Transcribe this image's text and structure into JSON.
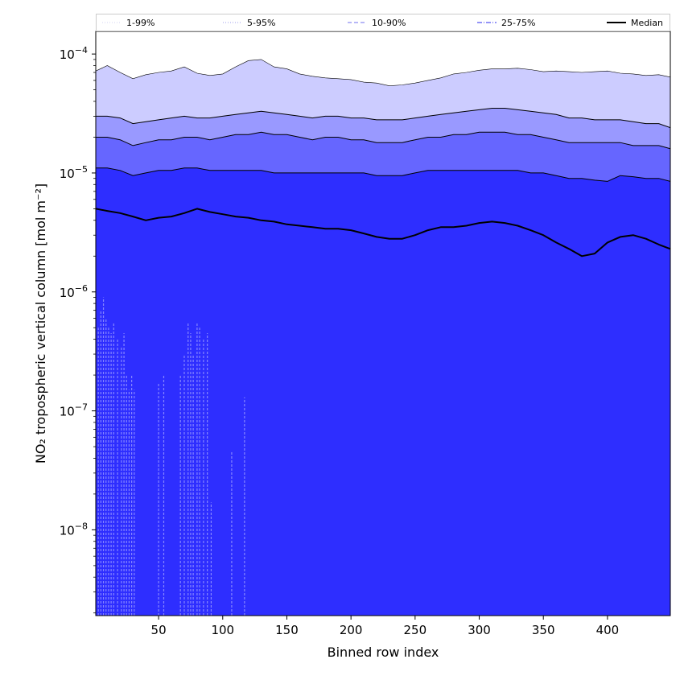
{
  "chart_data": {
    "type": "area",
    "xlabel": "Binned row index",
    "ylabel": "NO₂ tropospheric vertical column [mol m⁻²]",
    "xlim": [
      1,
      449
    ],
    "ylim": [
      1.9e-09,
      0.000155
    ],
    "yscale": "log",
    "xticks": [
      50,
      100,
      150,
      200,
      250,
      300,
      350,
      400
    ],
    "yticks": [
      {
        "value": 1e-08,
        "label": "10",
        "exp": "−8"
      },
      {
        "value": 1e-07,
        "label": "10",
        "exp": "−7"
      },
      {
        "value": 1e-06,
        "label": "10",
        "exp": "−6"
      },
      {
        "value": 1e-05,
        "label": "10",
        "exp": "−5"
      },
      {
        "value": 0.0001,
        "label": "10",
        "exp": "−4"
      }
    ],
    "legend_position": "top, above plot (5 columns)",
    "legend": [
      {
        "name": "1-99%",
        "style": "dotted",
        "color": "#dcdcf5"
      },
      {
        "name": "5-95%",
        "style": "dotted",
        "color": "#b0b0f0"
      },
      {
        "name": "10-90%",
        "style": "dashed",
        "color": "#8c8cf2"
      },
      {
        "name": "25-75%",
        "style": "dashdot",
        "color": "#5555f2"
      },
      {
        "name": "Median",
        "style": "solid",
        "color": "#000000"
      }
    ],
    "x": [
      1,
      10,
      20,
      30,
      40,
      50,
      60,
      70,
      80,
      90,
      100,
      110,
      120,
      130,
      140,
      150,
      160,
      170,
      180,
      190,
      200,
      210,
      220,
      230,
      240,
      250,
      260,
      270,
      280,
      290,
      300,
      310,
      320,
      330,
      340,
      350,
      360,
      370,
      380,
      390,
      400,
      410,
      420,
      430,
      440,
      449
    ],
    "series": [
      {
        "name": "1-99%",
        "band_color": "#ccccff",
        "upper": [
          7.2e-05,
          8e-05,
          7e-05,
          6.2e-05,
          6.7e-05,
          7e-05,
          7.2e-05,
          7.8e-05,
          6.9e-05,
          6.6e-05,
          6.8e-05,
          7.8e-05,
          8.8e-05,
          9e-05,
          7.8e-05,
          7.5e-05,
          6.8e-05,
          6.5e-05,
          6.3e-05,
          6.2e-05,
          6.1e-05,
          5.8e-05,
          5.7e-05,
          5.4e-05,
          5.5e-05,
          5.7e-05,
          6e-05,
          6.3e-05,
          6.8e-05,
          7e-05,
          7.3e-05,
          7.5e-05,
          7.5e-05,
          7.6e-05,
          7.4e-05,
          7.1e-05,
          7.2e-05,
          7.1e-05,
          7e-05,
          7.1e-05,
          7.2e-05,
          6.9e-05,
          6.8e-05,
          6.6e-05,
          6.7e-05,
          6.4e-05
        ],
        "lower": [
          1.9e-09,
          1.9e-09,
          1.9e-09,
          1.9e-09,
          1.9e-09,
          1.9e-09,
          1.9e-09,
          1.9e-09,
          1.9e-09,
          1.9e-09,
          1.9e-09,
          1.9e-09,
          1.9e-09,
          1.9e-09,
          1.9e-09,
          1.9e-09,
          1.9e-09,
          1.9e-09,
          1.9e-09,
          1.9e-09,
          1.9e-09,
          1.9e-09,
          1.9e-09,
          1.9e-09,
          1.9e-09,
          1.9e-09,
          1.9e-09,
          1.9e-09,
          1.9e-09,
          1.9e-09,
          1.9e-09,
          1.9e-09,
          1.9e-09,
          1.9e-09,
          1.9e-09,
          1.9e-09,
          1.9e-09,
          1.9e-09,
          1.9e-09,
          1.9e-09,
          1.9e-09,
          1.9e-09,
          1.9e-09,
          1.9e-09,
          1.9e-09,
          1.9e-09
        ]
      },
      {
        "name": "5-95%",
        "band_color": "#9999ff",
        "upper": [
          3e-05,
          3e-05,
          2.9e-05,
          2.6e-05,
          2.7e-05,
          2.8e-05,
          2.9e-05,
          3e-05,
          2.9e-05,
          2.9e-05,
          3e-05,
          3.1e-05,
          3.2e-05,
          3.3e-05,
          3.2e-05,
          3.1e-05,
          3e-05,
          2.9e-05,
          3e-05,
          3e-05,
          2.9e-05,
          2.9e-05,
          2.8e-05,
          2.8e-05,
          2.8e-05,
          2.9e-05,
          3e-05,
          3.1e-05,
          3.2e-05,
          3.3e-05,
          3.4e-05,
          3.5e-05,
          3.5e-05,
          3.4e-05,
          3.3e-05,
          3.2e-05,
          3.1e-05,
          2.9e-05,
          2.9e-05,
          2.8e-05,
          2.8e-05,
          2.8e-05,
          2.7e-05,
          2.6e-05,
          2.6e-05,
          2.4e-05
        ],
        "lower": [
          1.9e-09,
          1.9e-09,
          1.9e-09,
          1.9e-09,
          1.9e-09,
          1.9e-09,
          1.9e-09,
          1.9e-09,
          1.9e-09,
          1.9e-09,
          1.9e-09,
          1.9e-09,
          1.9e-09,
          1.9e-09,
          1.9e-09,
          1.9e-09,
          1.9e-09,
          1.9e-09,
          1.9e-09,
          1.9e-09,
          1.9e-09,
          1.9e-09,
          1.9e-09,
          1.9e-09,
          1.9e-09,
          1.9e-09,
          1.9e-09,
          1.9e-09,
          1.9e-09,
          1.9e-09,
          1.9e-09,
          1.9e-09,
          1.9e-09,
          1.9e-09,
          1.9e-09,
          1.9e-09,
          1.9e-09,
          1.9e-09,
          1.9e-09,
          1.9e-09,
          1.9e-09,
          1.9e-09,
          1.9e-09,
          1.9e-09,
          1.9e-09,
          1.9e-09
        ]
      },
      {
        "name": "10-90%",
        "band_color": "#6666ff",
        "upper": [
          2e-05,
          2e-05,
          1.9e-05,
          1.7e-05,
          1.8e-05,
          1.9e-05,
          1.9e-05,
          2e-05,
          2e-05,
          1.9e-05,
          2e-05,
          2.1e-05,
          2.1e-05,
          2.2e-05,
          2.1e-05,
          2.1e-05,
          2e-05,
          1.9e-05,
          2e-05,
          2e-05,
          1.9e-05,
          1.9e-05,
          1.8e-05,
          1.8e-05,
          1.8e-05,
          1.9e-05,
          2e-05,
          2e-05,
          2.1e-05,
          2.1e-05,
          2.2e-05,
          2.2e-05,
          2.2e-05,
          2.1e-05,
          2.1e-05,
          2e-05,
          1.9e-05,
          1.8e-05,
          1.8e-05,
          1.8e-05,
          1.8e-05,
          1.8e-05,
          1.7e-05,
          1.7e-05,
          1.7e-05,
          1.6e-05
        ],
        "lower": [
          1.9e-09,
          1.9e-09,
          1.9e-09,
          1.9e-09,
          1.9e-09,
          1.9e-09,
          1.9e-09,
          1.9e-09,
          1.9e-09,
          1.9e-09,
          1.9e-09,
          1.9e-09,
          1.9e-09,
          1.9e-09,
          1.9e-09,
          1.9e-09,
          1.9e-09,
          1.9e-09,
          1.9e-09,
          1.9e-09,
          1.9e-09,
          1.9e-09,
          1.9e-09,
          1.9e-09,
          1.9e-09,
          1.9e-09,
          1.9e-09,
          1.9e-09,
          1.9e-09,
          1.9e-09,
          1.9e-09,
          1.9e-09,
          1.9e-09,
          1.9e-09,
          1.9e-09,
          1.9e-09,
          1.9e-09,
          1.9e-09,
          1.9e-09,
          1.9e-09,
          1.9e-09,
          1.9e-09,
          1.9e-09,
          1.9e-09,
          1.9e-09,
          1.9e-09
        ]
      },
      {
        "name": "25-75%",
        "band_color": "#2e2eff",
        "upper": [
          1.1e-05,
          1.1e-05,
          1.05e-05,
          9.5e-06,
          1e-05,
          1.05e-05,
          1.05e-05,
          1.1e-05,
          1.1e-05,
          1.05e-05,
          1.05e-05,
          1.05e-05,
          1.05e-05,
          1.05e-05,
          1e-05,
          1e-05,
          1e-05,
          1e-05,
          1e-05,
          1e-05,
          1e-05,
          1e-05,
          9.5e-06,
          9.5e-06,
          9.5e-06,
          1e-05,
          1.05e-05,
          1.05e-05,
          1.05e-05,
          1.05e-05,
          1.05e-05,
          1.05e-05,
          1.05e-05,
          1.05e-05,
          1e-05,
          1e-05,
          9.5e-06,
          9e-06,
          9e-06,
          8.7e-06,
          8.5e-06,
          9.5e-06,
          9.3e-06,
          9e-06,
          9e-06,
          8.5e-06
        ],
        "lower": [
          1.9e-09,
          1.9e-09,
          1.9e-09,
          1.9e-09,
          1.9e-09,
          1.9e-09,
          1.9e-09,
          1.9e-09,
          1.9e-09,
          1.9e-09,
          1.9e-09,
          1.9e-09,
          1.9e-09,
          1.9e-09,
          1.9e-09,
          1.9e-09,
          1.9e-09,
          1.9e-09,
          1.9e-09,
          1.9e-09,
          1.9e-09,
          1.9e-09,
          1.9e-09,
          1.9e-09,
          1.9e-09,
          1.9e-09,
          1.9e-09,
          1.9e-09,
          1.9e-09,
          1.9e-09,
          1.9e-09,
          1.9e-09,
          1.9e-09,
          1.9e-09,
          1.9e-09,
          1.9e-09,
          1.9e-09,
          1.9e-09,
          1.9e-09,
          1.9e-09,
          1.9e-09,
          1.9e-09,
          1.9e-09,
          1.9e-09,
          1.9e-09,
          1.9e-09
        ]
      },
      {
        "name": "Median",
        "color": "#000000",
        "values": [
          5e-06,
          4.8e-06,
          4.6e-06,
          4.3e-06,
          4e-06,
          4.2e-06,
          4.3e-06,
          4.6e-06,
          5e-06,
          4.7e-06,
          4.5e-06,
          4.3e-06,
          4.2e-06,
          4e-06,
          3.9e-06,
          3.7e-06,
          3.6e-06,
          3.5e-06,
          3.4e-06,
          3.4e-06,
          3.3e-06,
          3.1e-06,
          2.9e-06,
          2.8e-06,
          2.8e-06,
          3e-06,
          3.3e-06,
          3.5e-06,
          3.5e-06,
          3.6e-06,
          3.8e-06,
          3.9e-06,
          3.8e-06,
          3.6e-06,
          3.3e-06,
          3e-06,
          2.6e-06,
          2.3e-06,
          2e-06,
          2.1e-06,
          2.6e-06,
          2.9e-06,
          3e-06,
          2.8e-06,
          2.5e-06,
          2.3e-06
        ]
      }
    ],
    "lower_tail_spikes": {
      "x": [
        3,
        5,
        7,
        9,
        11,
        13,
        15,
        18,
        21,
        23,
        25,
        27,
        29,
        31,
        50,
        54,
        67,
        70,
        73,
        75,
        77,
        80,
        82,
        85,
        88,
        91,
        107,
        117
      ],
      "y": [
        5e-07,
        7e-07,
        9e-07,
        6e-07,
        5e-07,
        4.5e-07,
        5.5e-07,
        4e-07,
        3.5e-07,
        4.5e-07,
        2e-07,
        1.5e-07,
        2e-07,
        1.5e-07,
        1.7e-07,
        2e-07,
        2e-07,
        3e-07,
        5.5e-07,
        4.5e-07,
        3e-07,
        5.5e-07,
        5e-07,
        4e-07,
        4.5e-07,
        1.7e-08,
        4.5e-08,
        1.3e-07
      ]
    }
  }
}
